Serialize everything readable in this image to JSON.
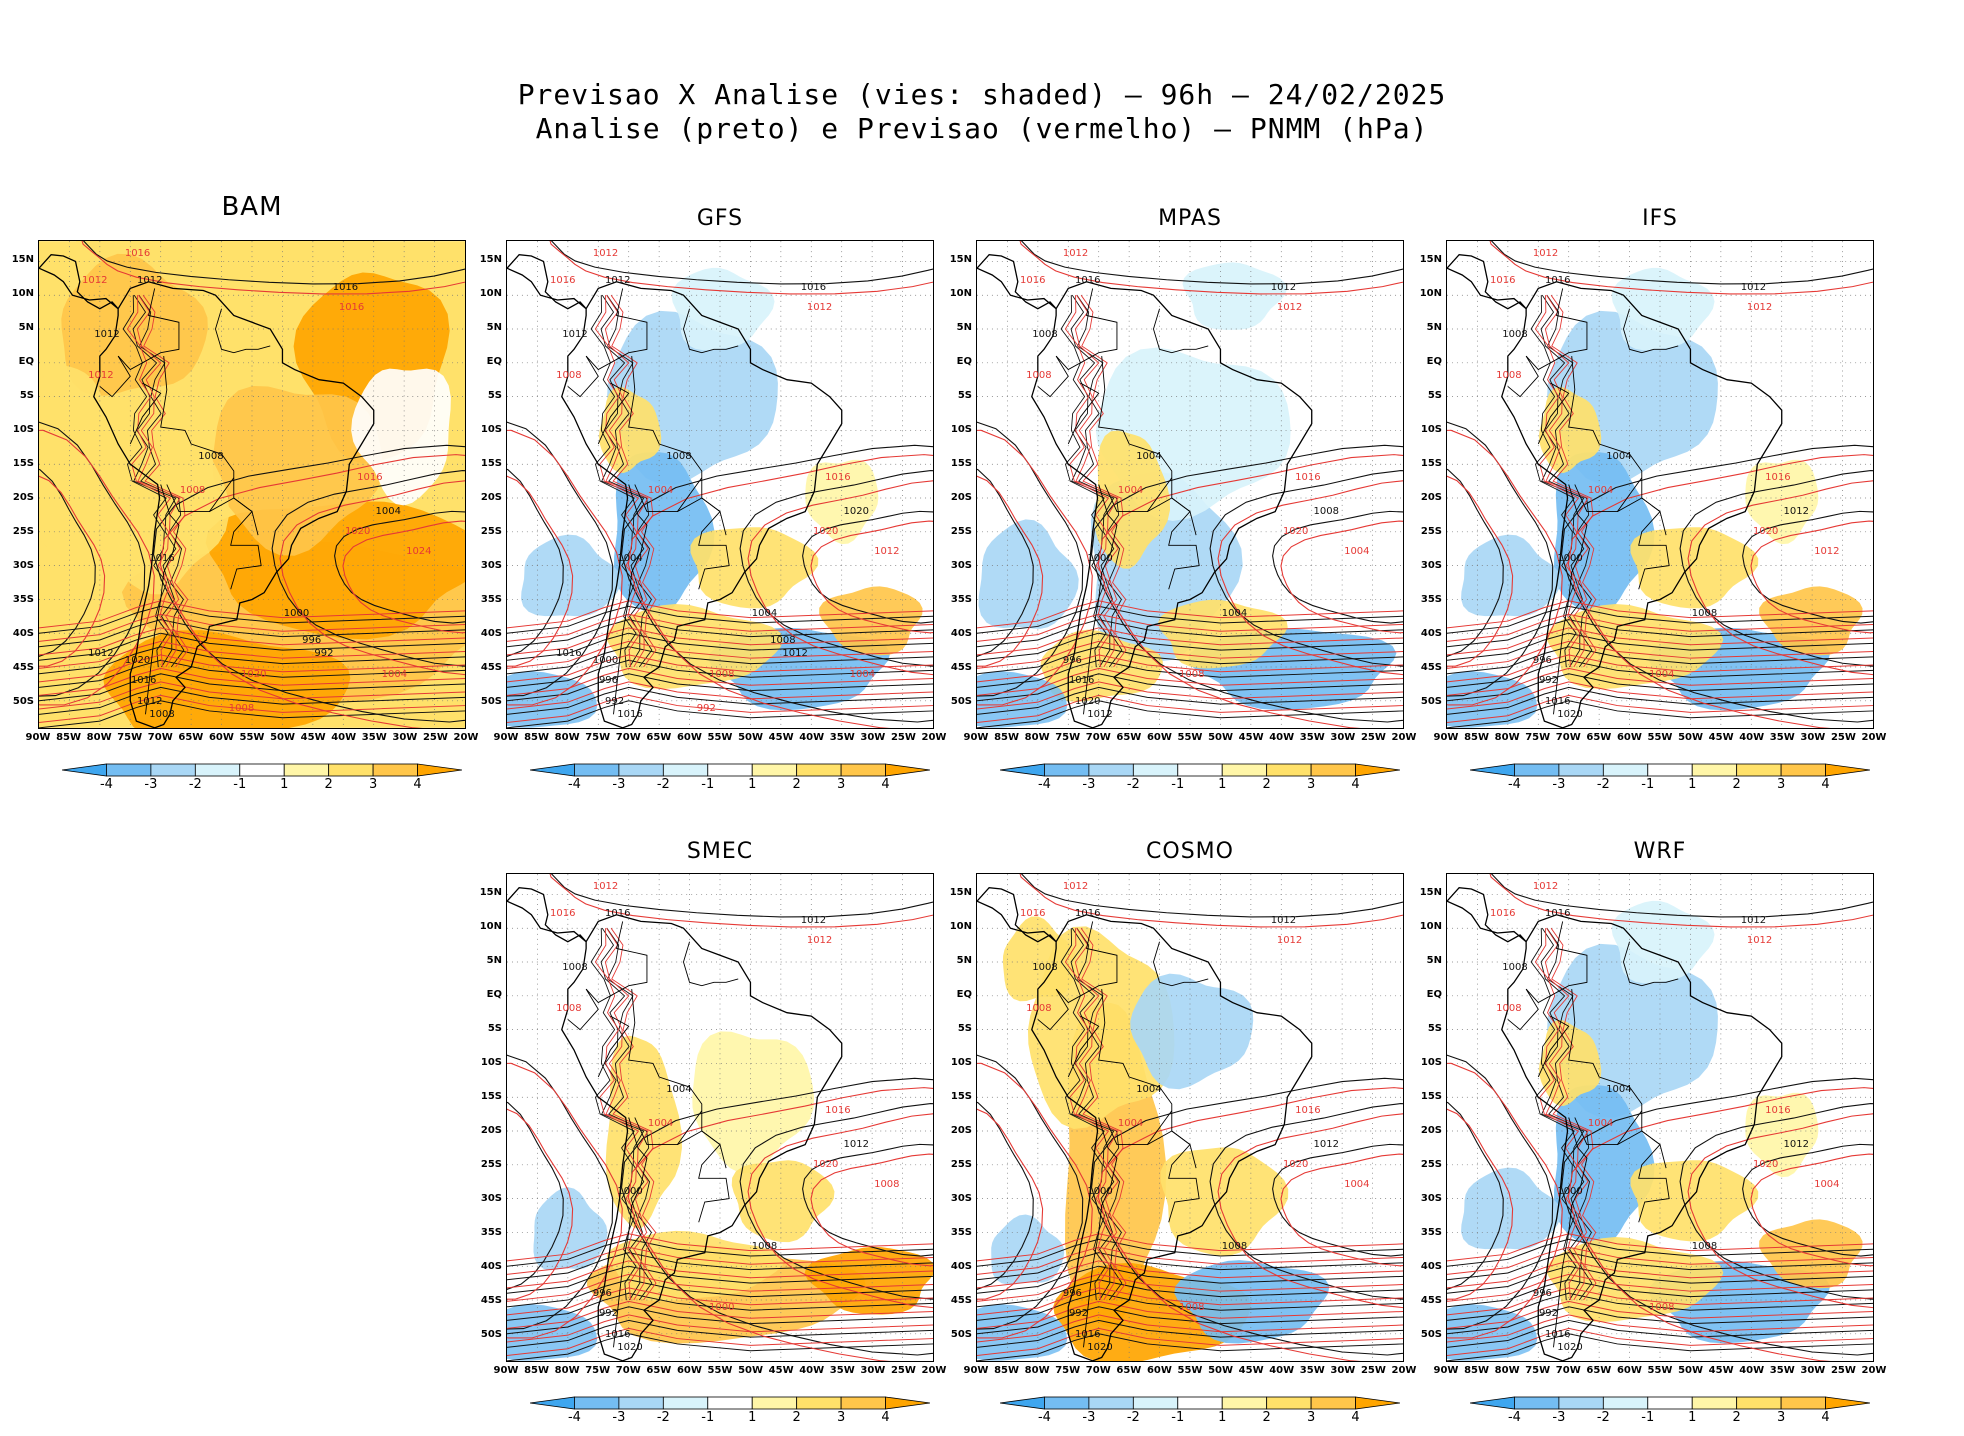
{
  "title": {
    "line1": "Previsao X Analise (vies: shaded) — 96h — 24/02/2025",
    "line2": "Analise (preto) e Previsao (vermelho) — PNMM (hPa)"
  },
  "axes": {
    "lat_labels": [
      "15N",
      "10N",
      "5N",
      "EQ",
      "5S",
      "10S",
      "15S",
      "20S",
      "25S",
      "30S",
      "35S",
      "40S",
      "45S",
      "50S"
    ],
    "lon_labels": [
      "90W",
      "85W",
      "80W",
      "75W",
      "70W",
      "65W",
      "60W",
      "55W",
      "50W",
      "45W",
      "40W",
      "35W",
      "30W",
      "25W",
      "20W"
    ]
  },
  "colorbar": {
    "labels": [
      "-4",
      "-3",
      "-2",
      "-1",
      "1",
      "2",
      "3",
      "4"
    ],
    "colors": [
      "#3ea6ef",
      "#74bdf2",
      "#a9d7f5",
      "#d8f3fb",
      "#ffffff",
      "#fff6a8",
      "#ffe16a",
      "#ffc64a",
      "#ffa500"
    ]
  },
  "legend": {
    "analysis_color": "#111111",
    "forecast_color": "#e53935"
  },
  "panels": [
    {
      "name": "BAM",
      "bias": "warm",
      "labels": {
        "black": [
          "1012",
          "1016",
          "1012",
          "1008",
          "1016",
          "1020",
          "1016",
          "1012",
          "1008",
          "1004",
          "1000",
          "996",
          "992",
          "1012"
        ],
        "red": [
          "1016",
          "1012",
          "1016",
          "1012",
          "1008",
          "1016",
          "1020",
          "1024",
          "1020",
          "1004",
          "1008"
        ]
      }
    },
    {
      "name": "GFS",
      "bias": "mixed",
      "labels": {
        "black": [
          "1012",
          "1016",
          "1012",
          "1008",
          "1004",
          "1000",
          "996",
          "992",
          "1016",
          "1020",
          "1004",
          "1008",
          "1012",
          "1016"
        ],
        "red": [
          "1012",
          "1016",
          "1012",
          "1008",
          "1004",
          "1016",
          "1020",
          "1012",
          "1008",
          "1004",
          "992"
        ]
      }
    },
    {
      "name": "MPAS",
      "bias": "cool",
      "labels": {
        "black": [
          "1016",
          "1012",
          "1008",
          "1004",
          "1000",
          "996",
          "1016",
          "1020",
          "1012",
          "1008",
          "1004"
        ],
        "red": [
          "1012",
          "1016",
          "1012",
          "1008",
          "1004",
          "1016",
          "1020",
          "1004",
          "1008"
        ]
      }
    },
    {
      "name": "IFS",
      "bias": "mixed",
      "labels": {
        "black": [
          "1016",
          "1012",
          "1008",
          "1004",
          "1000",
          "996",
          "992",
          "1016",
          "1020",
          "1012",
          "1008"
        ],
        "red": [
          "1012",
          "1016",
          "1012",
          "1008",
          "1004",
          "1016",
          "1020",
          "1012",
          "1004"
        ]
      }
    },
    {
      "name": "SMEC",
      "bias": "warm-south",
      "labels": {
        "black": [
          "1016",
          "1012",
          "1008",
          "1004",
          "1000",
          "996",
          "992",
          "1016",
          "1020",
          "1012",
          "1008"
        ],
        "red": [
          "1012",
          "1016",
          "1012",
          "1008",
          "1004",
          "1016",
          "1020",
          "1008",
          "1000"
        ]
      }
    },
    {
      "name": "COSMO",
      "bias": "warm-andes",
      "labels": {
        "black": [
          "1016",
          "1012",
          "1008",
          "1004",
          "1000",
          "996",
          "992",
          "1016",
          "1020",
          "1012",
          "1008"
        ],
        "red": [
          "1012",
          "1016",
          "1012",
          "1008",
          "1004",
          "1016",
          "1020",
          "1004",
          "1008"
        ]
      }
    },
    {
      "name": "WRF",
      "bias": "mixed",
      "labels": {
        "black": [
          "1016",
          "1012",
          "1008",
          "1004",
          "1000",
          "996",
          "992",
          "1016",
          "1020",
          "1012",
          "1008"
        ],
        "red": [
          "1012",
          "1016",
          "1012",
          "1008",
          "1004",
          "1016",
          "1020",
          "1004",
          "1008"
        ]
      }
    }
  ]
}
